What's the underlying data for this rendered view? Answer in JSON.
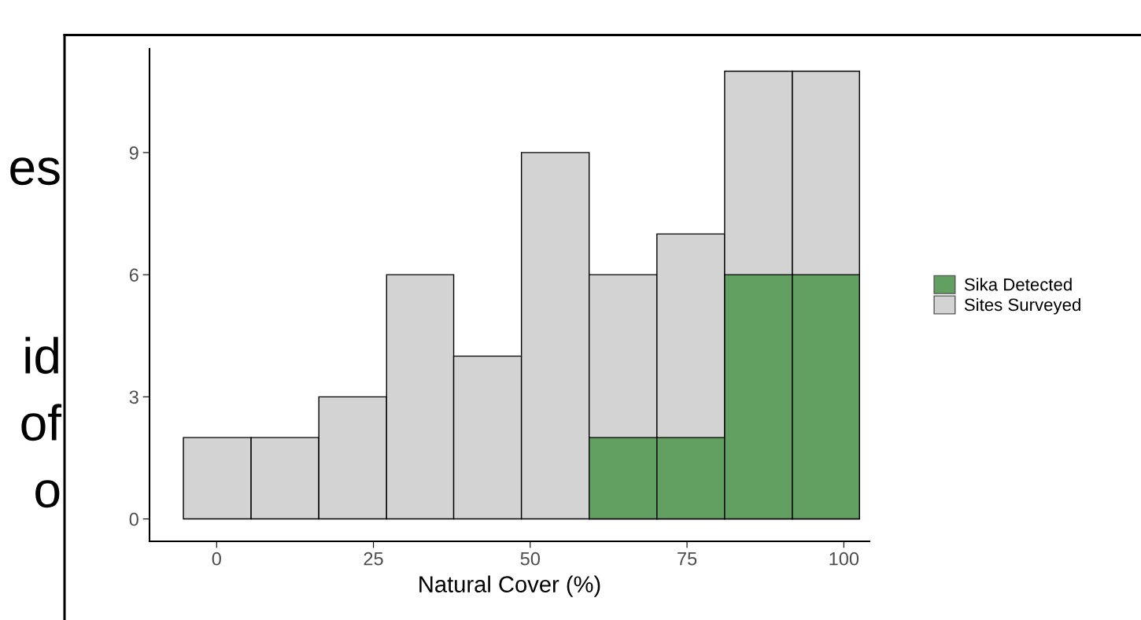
{
  "chart_data": {
    "type": "histogram",
    "xlabel": "Natural Cover (%)",
    "bins": [
      -5.3,
      5.5,
      16.3,
      27.1,
      37.8,
      48.6,
      59.4,
      70.2,
      81.0,
      91.8,
      102.5
    ],
    "series": [
      {
        "name": "Sika Detected",
        "color": "#62a062",
        "values": [
          0,
          0,
          0,
          0,
          0,
          0,
          2,
          2,
          6,
          6
        ]
      },
      {
        "name": "Sites Surveyed",
        "color": "#d3d3d3",
        "values": [
          2,
          2,
          3,
          6,
          4,
          9,
          6,
          7,
          11,
          11
        ]
      }
    ],
    "xlim": [
      -10.7,
      104.1
    ],
    "xticks": [
      0,
      25,
      50,
      75,
      100
    ],
    "ylim": [
      -0.55,
      11.55
    ],
    "yticks": [
      0,
      3,
      6,
      9
    ],
    "grid": false,
    "legend": "right",
    "annotations": [
      "es",
      "id",
      "of",
      "o"
    ]
  }
}
